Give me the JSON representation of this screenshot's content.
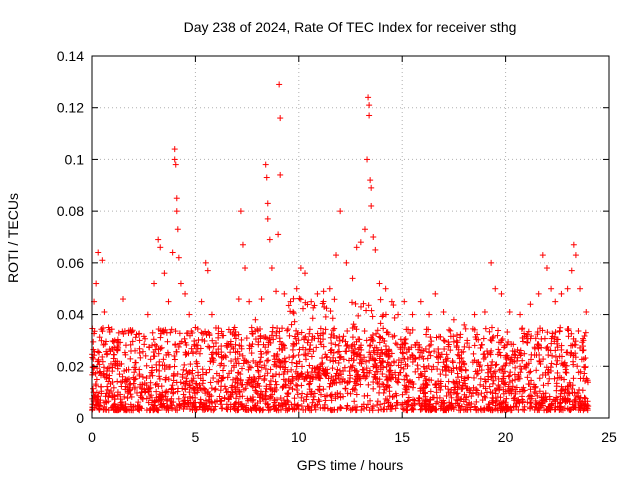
{
  "chart_data": {
    "type": "scatter",
    "title": "Day 238 of 2024, Rate Of TEC Index for receiver sthg",
    "xlabel": "GPS time / hours",
    "ylabel": "ROTI / TECUs",
    "xlim": [
      0,
      25
    ],
    "ylim": [
      0,
      0.14
    ],
    "xticks": [
      0,
      5,
      10,
      15,
      20,
      25
    ],
    "xtick_labels": [
      "0",
      "5",
      "10",
      "15",
      "20",
      "25"
    ],
    "yticks": [
      0,
      0.02,
      0.04,
      0.06,
      0.08,
      0.1,
      0.12,
      0.14
    ],
    "ytick_labels": [
      "0",
      "0.02",
      "0.04",
      "0.06",
      "0.08",
      "0.1",
      "0.12",
      "0.14"
    ],
    "grid": true,
    "marker": "plus",
    "color": "#ff0000",
    "series": [
      {
        "name": "ROTI",
        "points": [
          [
            0.1,
            0.045
          ],
          [
            0.2,
            0.052
          ],
          [
            0.3,
            0.064
          ],
          [
            0.5,
            0.061
          ],
          [
            0.6,
            0.041
          ],
          [
            0.8,
            0.035
          ],
          [
            1.1,
            0.03
          ],
          [
            1.5,
            0.046
          ],
          [
            1.9,
            0.033
          ],
          [
            2.3,
            0.03
          ],
          [
            2.7,
            0.04
          ],
          [
            3.0,
            0.052
          ],
          [
            3.2,
            0.069
          ],
          [
            3.3,
            0.066
          ],
          [
            3.5,
            0.056
          ],
          [
            3.7,
            0.045
          ],
          [
            3.9,
            0.064
          ],
          [
            4.0,
            0.104
          ],
          [
            4.0,
            0.1
          ],
          [
            4.05,
            0.098
          ],
          [
            4.1,
            0.085
          ],
          [
            4.1,
            0.08
          ],
          [
            4.15,
            0.073
          ],
          [
            4.2,
            0.062
          ],
          [
            4.3,
            0.052
          ],
          [
            4.5,
            0.048
          ],
          [
            4.7,
            0.04
          ],
          [
            5.0,
            0.035
          ],
          [
            5.3,
            0.045
          ],
          [
            5.5,
            0.06
          ],
          [
            5.6,
            0.057
          ],
          [
            5.8,
            0.04
          ],
          [
            6.1,
            0.031
          ],
          [
            6.5,
            0.028
          ],
          [
            6.9,
            0.035
          ],
          [
            7.1,
            0.046
          ],
          [
            7.2,
            0.08
          ],
          [
            7.3,
            0.067
          ],
          [
            7.4,
            0.058
          ],
          [
            7.6,
            0.045
          ],
          [
            7.9,
            0.038
          ],
          [
            8.2,
            0.046
          ],
          [
            8.4,
            0.098
          ],
          [
            8.45,
            0.093
          ],
          [
            8.5,
            0.083
          ],
          [
            8.5,
            0.077
          ],
          [
            8.6,
            0.069
          ],
          [
            8.7,
            0.058
          ],
          [
            8.9,
            0.049
          ],
          [
            9.0,
            0.071
          ],
          [
            9.05,
            0.129
          ],
          [
            9.1,
            0.116
          ],
          [
            9.1,
            0.094
          ],
          [
            9.3,
            0.048
          ],
          [
            9.6,
            0.045
          ],
          [
            9.9,
            0.05
          ],
          [
            10.1,
            0.058
          ],
          [
            10.3,
            0.056
          ],
          [
            10.6,
            0.045
          ],
          [
            10.9,
            0.048
          ],
          [
            11.2,
            0.049
          ],
          [
            11.5,
            0.05
          ],
          [
            11.8,
            0.063
          ],
          [
            12.0,
            0.08
          ],
          [
            12.3,
            0.06
          ],
          [
            12.6,
            0.054
          ],
          [
            12.8,
            0.066
          ],
          [
            13.0,
            0.068
          ],
          [
            13.2,
            0.073
          ],
          [
            13.3,
            0.1
          ],
          [
            13.35,
            0.124
          ],
          [
            13.4,
            0.121
          ],
          [
            13.4,
            0.117
          ],
          [
            13.45,
            0.092
          ],
          [
            13.5,
            0.089
          ],
          [
            13.5,
            0.082
          ],
          [
            13.6,
            0.07
          ],
          [
            13.7,
            0.065
          ],
          [
            13.9,
            0.052
          ],
          [
            14.2,
            0.05
          ],
          [
            14.5,
            0.045
          ],
          [
            14.8,
            0.04
          ],
          [
            15.1,
            0.045
          ],
          [
            15.5,
            0.04
          ],
          [
            15.9,
            0.045
          ],
          [
            16.3,
            0.04
          ],
          [
            16.6,
            0.048
          ],
          [
            17.0,
            0.041
          ],
          [
            17.5,
            0.038
          ],
          [
            18.0,
            0.036
          ],
          [
            18.5,
            0.04
          ],
          [
            19.0,
            0.041
          ],
          [
            19.3,
            0.06
          ],
          [
            19.5,
            0.05
          ],
          [
            19.8,
            0.048
          ],
          [
            20.2,
            0.041
          ],
          [
            20.7,
            0.04
          ],
          [
            21.2,
            0.044
          ],
          [
            21.6,
            0.048
          ],
          [
            21.8,
            0.063
          ],
          [
            22.0,
            0.058
          ],
          [
            22.2,
            0.05
          ],
          [
            22.4,
            0.045
          ],
          [
            22.7,
            0.048
          ],
          [
            23.0,
            0.05
          ],
          [
            23.2,
            0.057
          ],
          [
            23.3,
            0.067
          ],
          [
            23.4,
            0.063
          ],
          [
            23.6,
            0.05
          ],
          [
            23.9,
            0.041
          ]
        ]
      }
    ]
  }
}
